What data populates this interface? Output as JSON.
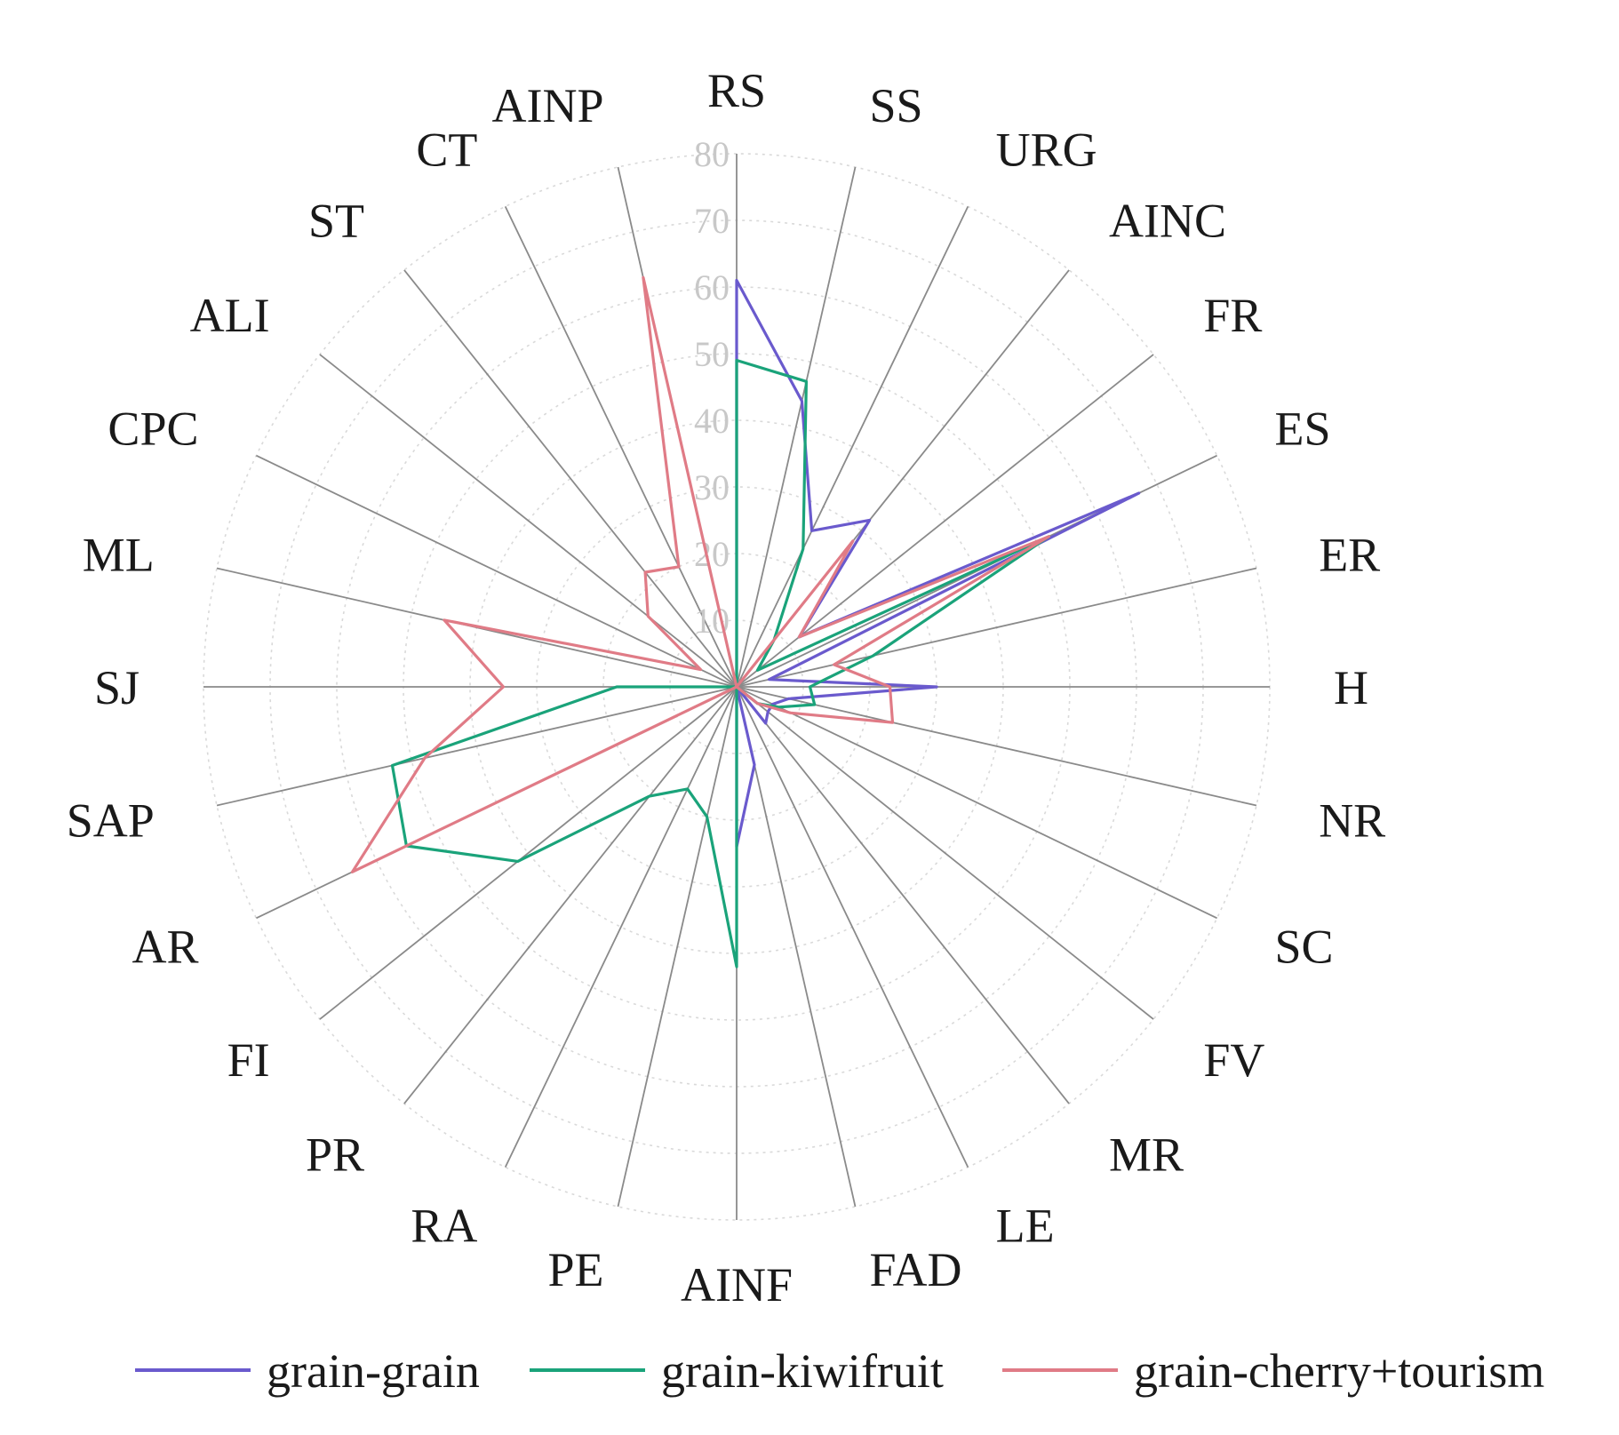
{
  "chart_data": {
    "type": "radar",
    "axes": [
      "RS",
      "SS",
      "URG",
      "AINC",
      "FR",
      "ES",
      "ER",
      "H",
      "NR",
      "SC",
      "FV",
      "MR",
      "LE",
      "FAD",
      "AINF",
      "PE",
      "RA",
      "PR",
      "FI",
      "AR",
      "SAP",
      "SJ",
      "ML",
      "CPC",
      "ALI",
      "ST",
      "CT",
      "AINP"
    ],
    "radial_ticks": [
      "10",
      "20",
      "30",
      "40",
      "50",
      "60",
      "70",
      "80"
    ],
    "rlim": [
      0,
      80
    ],
    "grid": true,
    "legend_position": "bottom",
    "series": [
      {
        "name": "grain-grain",
        "color": "#6a5acd",
        "values": [
          61,
          44,
          26,
          32,
          12,
          67,
          5,
          30,
          8,
          6,
          6,
          7,
          0,
          12,
          24,
          0,
          0,
          0,
          0,
          0,
          0,
          0,
          0,
          0,
          0,
          0,
          0,
          0
        ]
      },
      {
        "name": "grain-kiwifruit",
        "color": "#1aa37a",
        "values": [
          49,
          47,
          23,
          9,
          4,
          52,
          21,
          11,
          12,
          7,
          4,
          0,
          0,
          0,
          42,
          20,
          17,
          21,
          42,
          55,
          53,
          18,
          0,
          0,
          0,
          0,
          0,
          0
        ]
      },
      {
        "name": "grain-cherry+tourism",
        "color": "#e07b86",
        "values": [
          0,
          0,
          0,
          28,
          12,
          52,
          15,
          23,
          24,
          9,
          4,
          0,
          0,
          0,
          0,
          0,
          0,
          0,
          0,
          64,
          48,
          35,
          45,
          6,
          17,
          22,
          20,
          63
        ]
      }
    ]
  }
}
